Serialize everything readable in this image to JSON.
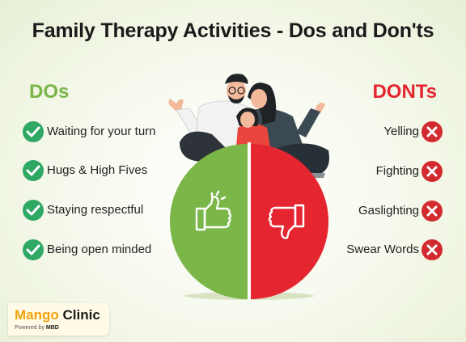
{
  "title": "Family Therapy Activities - Dos and Don'ts",
  "dos": {
    "heading": "DOs",
    "color": "#7ab648",
    "items": [
      "Waiting for your turn",
      "Hugs & High Fives",
      "Staying respectful",
      "Being open minded"
    ]
  },
  "donts": {
    "heading": "DONTs",
    "color": "#e52530",
    "items": [
      "Yelling",
      "Fighting",
      "Gaslighting",
      "Swear Words"
    ]
  },
  "illustration": {
    "left_half_icon": "thumbs-up-icon",
    "right_half_icon": "thumbs-down-icon",
    "figures": "family-of-three-icon"
  },
  "logo": {
    "name_part1": "Mango",
    "name_part2": "Clinic",
    "tagline": "Powered by",
    "tagline_brand": "MBD"
  }
}
